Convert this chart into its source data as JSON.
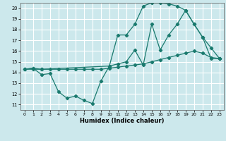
{
  "xlabel": "Humidex (Indice chaleur)",
  "bg_color": "#cce8ec",
  "grid_color": "#ffffff",
  "line_color": "#1a7a6e",
  "xlim": [
    -0.5,
    23.5
  ],
  "ylim": [
    10.5,
    20.5
  ],
  "xticks": [
    0,
    1,
    2,
    3,
    4,
    5,
    6,
    7,
    8,
    9,
    10,
    11,
    12,
    13,
    14,
    15,
    16,
    17,
    18,
    19,
    20,
    21,
    22,
    23
  ],
  "yticks": [
    11,
    12,
    13,
    14,
    15,
    16,
    17,
    18,
    19,
    20
  ],
  "curve1_x": [
    0,
    1,
    2,
    3,
    4,
    5,
    6,
    7,
    8,
    9,
    10,
    11,
    12,
    13,
    14,
    15,
    16,
    17,
    18,
    19,
    20,
    21,
    22,
    23
  ],
  "curve1_y": [
    14.3,
    14.4,
    13.8,
    13.9,
    12.2,
    11.6,
    11.8,
    11.4,
    11.1,
    13.2,
    14.6,
    14.8,
    15.0,
    16.1,
    14.7,
    18.5,
    16.1,
    17.5,
    18.5,
    19.8,
    18.5,
    17.3,
    15.3,
    15.3
  ],
  "curve2_x": [
    0,
    1,
    2,
    3,
    4,
    5,
    6,
    7,
    8,
    9,
    10,
    11,
    12,
    13,
    14,
    15,
    16,
    17,
    18,
    19,
    20,
    21,
    22,
    23
  ],
  "curve2_y": [
    14.3,
    14.3,
    14.3,
    14.3,
    14.3,
    14.3,
    14.3,
    14.3,
    14.3,
    14.3,
    14.4,
    14.5,
    14.6,
    14.7,
    14.8,
    15.0,
    15.2,
    15.4,
    15.6,
    15.8,
    16.0,
    15.8,
    15.4,
    15.3
  ],
  "curve3_x": [
    0,
    1,
    2,
    10,
    11,
    12,
    13,
    14,
    15,
    16,
    17,
    18,
    19,
    20,
    21,
    22,
    23
  ],
  "curve3_y": [
    14.3,
    14.4,
    14.3,
    14.6,
    17.5,
    17.5,
    18.5,
    20.2,
    20.5,
    20.5,
    20.4,
    20.2,
    19.8,
    18.5,
    17.3,
    16.3,
    15.3
  ]
}
